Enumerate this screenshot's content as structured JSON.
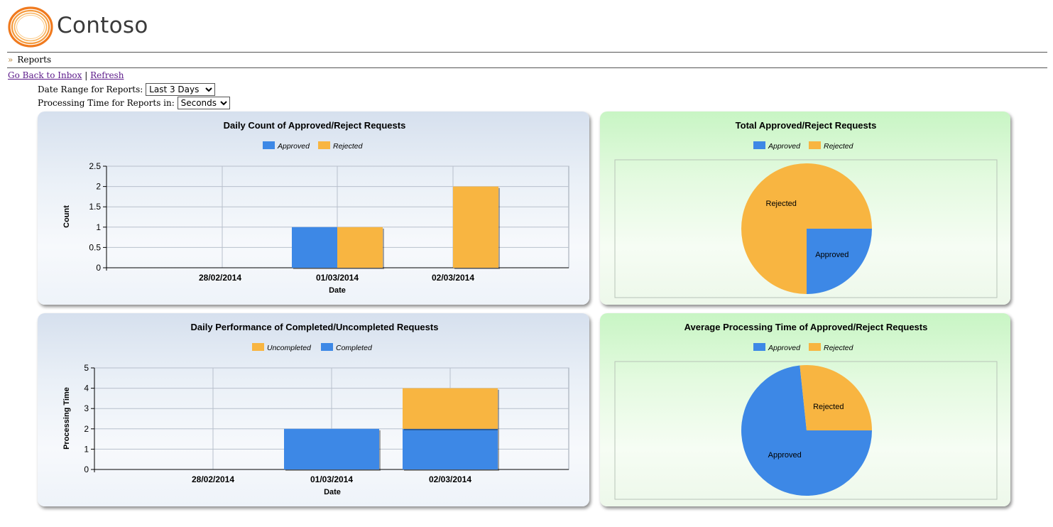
{
  "app": {
    "logo_text": "Contoso"
  },
  "breadcrumb": {
    "chevron": "»",
    "label": "Reports"
  },
  "links": {
    "back": "Go Back to Inbox",
    "separator": "|",
    "refresh": "Refresh"
  },
  "controls": {
    "date_range": {
      "label": "Date Range for Reports:",
      "value": "Last 3 Days"
    },
    "processing_time": {
      "label": "Processing Time for Reports in:",
      "value": "Seconds"
    }
  },
  "colors": {
    "blue": "#3d88e6",
    "orange": "#f8b541",
    "logo_orange": "#f07a1e"
  },
  "chart_data": [
    {
      "type": "bar",
      "title": "Daily Count of Approved/Reject Requests",
      "xlabel": "Date",
      "ylabel": "Count",
      "categories": [
        "28/02/2014",
        "01/03/2014",
        "02/03/2014"
      ],
      "series": [
        {
          "name": "Approved",
          "values": [
            0,
            1,
            0
          ],
          "color": "#3d88e6"
        },
        {
          "name": "Rejected",
          "values": [
            0,
            1,
            2
          ],
          "color": "#f8b541"
        }
      ],
      "ylim": [
        0,
        2.5
      ],
      "yticks": [
        "0",
        "0.5",
        "1",
        "1.5",
        "2",
        "2.5"
      ],
      "grid": true,
      "legend": "top-center"
    },
    {
      "type": "pie",
      "title": "Total Approved/Reject Requests",
      "legend_entries": [
        "Approved",
        "Rejected"
      ],
      "slices": [
        {
          "name": "Approved",
          "label": "Approved",
          "value": 1,
          "color": "#3d88e6"
        },
        {
          "name": "Rejected",
          "label": "Rejected",
          "value": 3,
          "color": "#f8b541"
        }
      ],
      "legend": "top-center"
    },
    {
      "type": "bar",
      "stacked": true,
      "title": "Daily Performance of Completed/Uncompleted Requests",
      "xlabel": "Date",
      "ylabel": "Processing Time",
      "categories": [
        "28/02/2014",
        "01/03/2014",
        "02/03/2014"
      ],
      "series": [
        {
          "name": "Uncompleted",
          "values": [
            0,
            0,
            2
          ],
          "color": "#f8b541"
        },
        {
          "name": "Completed",
          "values": [
            0,
            2,
            2
          ],
          "color": "#3d88e6"
        }
      ],
      "ylim": [
        0,
        5
      ],
      "yticks": [
        "0",
        "1",
        "2",
        "3",
        "4",
        "5"
      ],
      "grid": true,
      "legend": "top-center"
    },
    {
      "type": "pie",
      "title": "Average Processing Time of Approved/Reject Requests",
      "legend_entries": [
        "Approved",
        "Rejected"
      ],
      "slices": [
        {
          "name": "Approved",
          "label": "Approved",
          "value": 2.2,
          "color": "#3d88e6"
        },
        {
          "name": "Rejected",
          "label": "Rejected",
          "value": 0.8,
          "color": "#f8b541"
        }
      ],
      "legend": "top-center"
    }
  ]
}
